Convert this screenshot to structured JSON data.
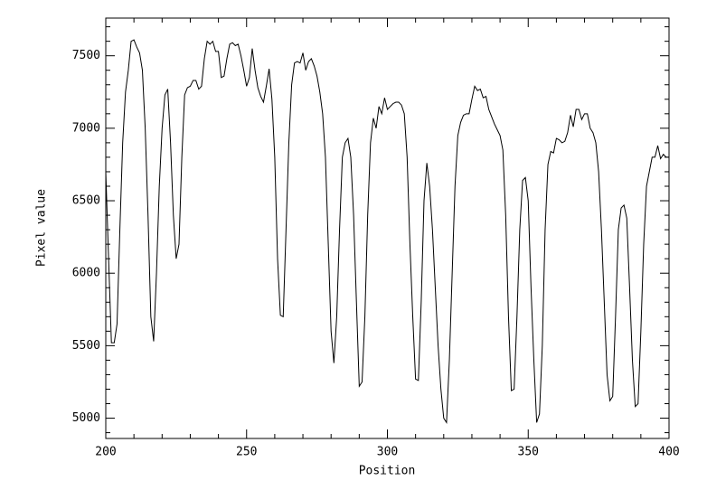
{
  "chart_data": {
    "type": "line",
    "xlabel": "Position",
    "ylabel": "Pixel value",
    "xlim": [
      200,
      400
    ],
    "ylim": [
      4860,
      7760
    ],
    "xticks": [
      200,
      250,
      300,
      350,
      400
    ],
    "yticks": [
      5000,
      5500,
      6000,
      6500,
      7000,
      7500
    ],
    "xminorticks": [
      210,
      220,
      230,
      240,
      260,
      270,
      280,
      290,
      310,
      320,
      330,
      340,
      360,
      370,
      380,
      390
    ],
    "yminorticks": [
      4900,
      5100,
      5200,
      5300,
      5400,
      5600,
      5700,
      5800,
      5900,
      6100,
      6200,
      6300,
      6400,
      6600,
      6700,
      6800,
      6900,
      7100,
      7200,
      7300,
      7400,
      7600,
      7700
    ],
    "color": "#000000",
    "x": [
      200,
      201,
      202,
      203,
      204,
      205,
      206,
      207,
      208,
      209,
      210,
      211,
      212,
      213,
      214,
      215,
      216,
      217,
      218,
      219,
      220,
      221,
      222,
      223,
      224,
      225,
      226,
      227,
      228,
      229,
      230,
      231,
      232,
      233,
      234,
      235,
      236,
      237,
      238,
      239,
      240,
      241,
      242,
      243,
      244,
      245,
      246,
      247,
      248,
      249,
      250,
      251,
      252,
      253,
      254,
      255,
      256,
      257,
      258,
      259,
      260,
      261,
      262,
      263,
      264,
      265,
      266,
      267,
      268,
      269,
      270,
      271,
      272,
      273,
      274,
      275,
      276,
      277,
      278,
      279,
      280,
      281,
      282,
      283,
      284,
      285,
      286,
      287,
      288,
      289,
      290,
      291,
      292,
      293,
      294,
      295,
      296,
      297,
      298,
      299,
      300,
      301,
      302,
      303,
      304,
      305,
      306,
      307,
      308,
      309,
      310,
      311,
      312,
      313,
      314,
      315,
      316,
      317,
      318,
      319,
      320,
      321,
      322,
      323,
      324,
      325,
      326,
      327,
      328,
      329,
      330,
      331,
      332,
      333,
      334,
      335,
      336,
      337,
      338,
      339,
      340,
      341,
      342,
      343,
      344,
      345,
      346,
      347,
      348,
      349,
      350,
      351,
      352,
      353,
      354,
      355,
      356,
      357,
      358,
      359,
      360,
      361,
      362,
      363,
      364,
      365,
      366,
      367,
      368,
      369,
      370,
      371,
      372,
      373,
      374,
      375,
      376,
      377,
      378,
      379,
      380,
      381,
      382,
      383,
      384,
      385,
      386,
      387,
      388,
      389,
      390,
      391,
      392,
      393,
      394,
      395,
      396,
      397,
      398,
      399,
      400
    ],
    "values": [
      6700,
      6100,
      5520,
      5520,
      5650,
      6300,
      6900,
      7250,
      7400,
      7600,
      7610,
      7560,
      7520,
      7400,
      7000,
      6400,
      5700,
      5530,
      6000,
      6600,
      7000,
      7230,
      7270,
      6900,
      6400,
      6100,
      6200,
      6800,
      7230,
      7280,
      7290,
      7330,
      7330,
      7270,
      7290,
      7480,
      7600,
      7580,
      7600,
      7530,
      7530,
      7350,
      7360,
      7480,
      7580,
      7590,
      7570,
      7580,
      7500,
      7400,
      7290,
      7350,
      7550,
      7400,
      7280,
      7220,
      7180,
      7290,
      7410,
      7200,
      6800,
      6100,
      5710,
      5700,
      6300,
      6900,
      7300,
      7450,
      7460,
      7450,
      7520,
      7400,
      7460,
      7480,
      7430,
      7360,
      7250,
      7100,
      6800,
      6200,
      5600,
      5380,
      5700,
      6300,
      6800,
      6900,
      6930,
      6800,
      6400,
      5800,
      5220,
      5250,
      5700,
      6400,
      6900,
      7070,
      7000,
      7150,
      7100,
      7210,
      7130,
      7150,
      7170,
      7180,
      7180,
      7160,
      7100,
      6800,
      6200,
      5700,
      5270,
      5260,
      5800,
      6500,
      6760,
      6600,
      6300,
      5900,
      5500,
      5200,
      5000,
      4970,
      5400,
      6000,
      6600,
      6950,
      7040,
      7090,
      7100,
      7100,
      7200,
      7290,
      7260,
      7270,
      7210,
      7220,
      7130,
      7080,
      7030,
      6990,
      6950,
      6850,
      6400,
      5700,
      5190,
      5200,
      5700,
      6300,
      6640,
      6660,
      6500,
      5900,
      5400,
      4970,
      5030,
      5500,
      6300,
      6750,
      6840,
      6830,
      6930,
      6920,
      6900,
      6910,
      6970,
      7090,
      7010,
      7130,
      7130,
      7060,
      7100,
      7100,
      7000,
      6970,
      6900,
      6700,
      6300,
      5800,
      5300,
      5120,
      5150,
      5700,
      6300,
      6450,
      6470,
      6380,
      5900,
      5400,
      5080,
      5100,
      5600,
      6200,
      6600,
      6700,
      6800,
      6800,
      6880,
      6790,
      6820,
      6800,
      6800
    ]
  }
}
